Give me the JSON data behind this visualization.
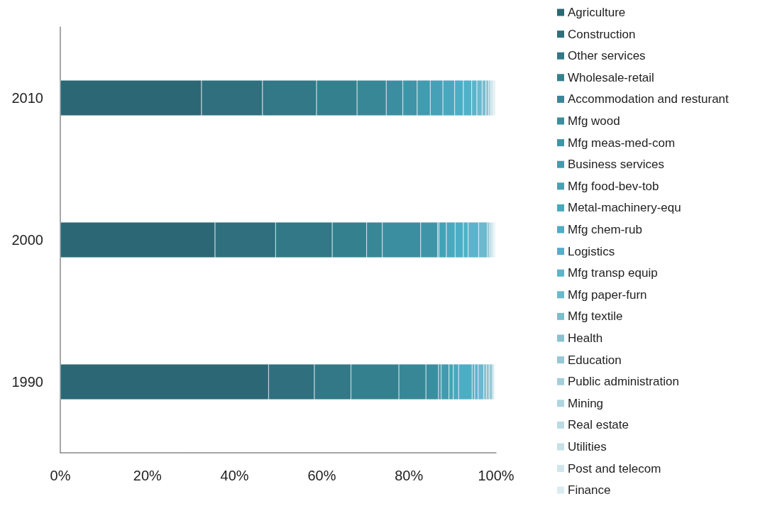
{
  "chart_data": {
    "type": "bar",
    "orientation": "horizontal",
    "stacked": true,
    "categories": [
      "2010",
      "2000",
      "1990"
    ],
    "xlim": [
      0,
      100
    ],
    "xticks": [
      {
        "value": 0,
        "label": "0%"
      },
      {
        "value": 20,
        "label": "20%"
      },
      {
        "value": 40,
        "label": "40%"
      },
      {
        "value": 60,
        "label": "60%"
      },
      {
        "value": 80,
        "label": "80%"
      },
      {
        "value": 100,
        "label": "100%"
      }
    ],
    "grid": false,
    "legend": "right",
    "series": [
      {
        "name": "Agriculture",
        "color": "#2c6775",
        "values": [
          32.4,
          35.5,
          47.8
        ]
      },
      {
        "name": "Construction",
        "color": "#2f6f7e",
        "values": [
          14.0,
          13.9,
          10.5
        ]
      },
      {
        "name": "Other services",
        "color": "#327886",
        "values": [
          12.4,
          13.0,
          8.4
        ]
      },
      {
        "name": "Wholesale-retail",
        "color": "#35808f",
        "values": [
          9.3,
          7.9,
          11.0
        ]
      },
      {
        "name": "Accommodation and resturant",
        "color": "#388797",
        "values": [
          6.7,
          3.6,
          6.2
        ]
      },
      {
        "name": "Mfg wood",
        "color": "#3b8e9f",
        "values": [
          3.8,
          8.8,
          2.9
        ]
      },
      {
        "name": "Mfg meas-med-com",
        "color": "#3f95a7",
        "values": [
          3.3,
          3.9,
          0.6
        ]
      },
      {
        "name": "Business services",
        "color": "#429caf",
        "values": [
          3.0,
          0.3,
          1.8
        ]
      },
      {
        "name": "Mfg food-bev-tob",
        "color": "#45a2b6",
        "values": [
          2.9,
          1.7,
          1.0
        ]
      },
      {
        "name": "Metal-machinery-equ",
        "color": "#49a8be",
        "values": [
          2.7,
          2.0,
          1.2
        ]
      },
      {
        "name": "Mfg chem-rub",
        "color": "#4caec5",
        "values": [
          2.0,
          1.9,
          3.1
        ]
      },
      {
        "name": "Logistics",
        "color": "#50b1c8",
        "values": [
          1.9,
          1.1,
          0.6
        ]
      },
      {
        "name": "Mfg transp equip",
        "color": "#5cb3cb",
        "values": [
          1.2,
          2.4,
          0.8
        ]
      },
      {
        "name": "Mfg paper-furn",
        "color": "#6cb8cd",
        "values": [
          1.2,
          2.0,
          1.3
        ]
      },
      {
        "name": "Mfg textile",
        "color": "#7bbecf",
        "values": [
          0.9,
          0.4,
          0.6
        ]
      },
      {
        "name": "Health",
        "color": "#8ac2d2",
        "values": [
          0.6,
          0.3,
          0.6
        ]
      },
      {
        "name": "Education",
        "color": "#96c8d6",
        "values": [
          0.4,
          0.3,
          0.8
        ]
      },
      {
        "name": "Public administration",
        "color": "#a3cfdc",
        "values": [
          0.3,
          0.2,
          0.3
        ]
      },
      {
        "name": "Mining",
        "color": "#aed5e0",
        "values": [
          0.3,
          0.2,
          0.1
        ]
      },
      {
        "name": "Real estate",
        "color": "#badbe4",
        "values": [
          0.2,
          0.2,
          0.1
        ]
      },
      {
        "name": "Utilities",
        "color": "#c5e1e8",
        "values": [
          0.2,
          0.2,
          0.1
        ]
      },
      {
        "name": "Post and telecom",
        "color": "#d0e6ec",
        "values": [
          0.2,
          0.1,
          0.1
        ]
      },
      {
        "name": "Finance",
        "color": "#dbecf0",
        "values": [
          0.1,
          0.1,
          0.1
        ]
      }
    ]
  }
}
